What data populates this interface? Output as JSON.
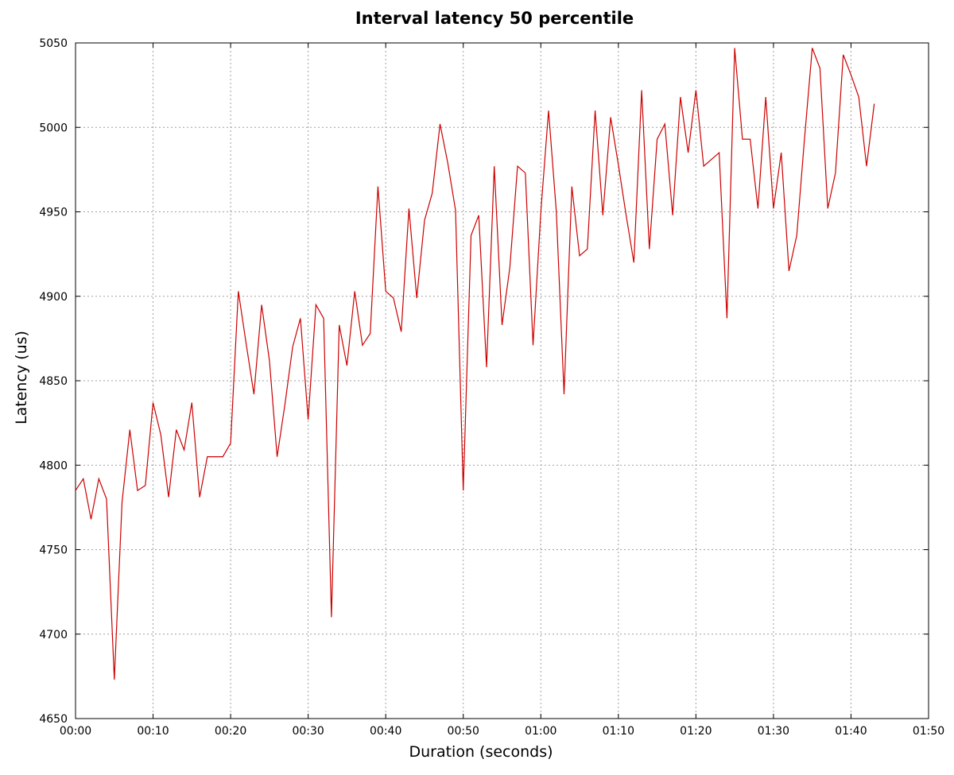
{
  "chart_data": {
    "type": "line",
    "title": "Interval latency 50 percentile",
    "xlabel": "Duration (seconds)",
    "ylabel": "Latency (us)",
    "xlim": [
      0,
      110
    ],
    "ylim": [
      4650,
      5050
    ],
    "x_ticks": [
      0,
      10,
      20,
      30,
      40,
      50,
      60,
      70,
      80,
      90,
      100,
      110
    ],
    "x_tick_labels": [
      "00:00",
      "00:10",
      "00:20",
      "00:30",
      "00:40",
      "00:50",
      "01:00",
      "01:10",
      "01:20",
      "01:30",
      "01:40",
      "01:50"
    ],
    "y_ticks": [
      4650,
      4700,
      4750,
      4800,
      4850,
      4900,
      4950,
      5000,
      5050
    ],
    "y_tick_labels": [
      "4650",
      "4700",
      "4750",
      "4800",
      "4850",
      "4900",
      "4950",
      "5000",
      "5050"
    ],
    "grid": true,
    "series": [
      {
        "color": "#cc0000",
        "x": [
          0,
          1,
          2,
          3,
          4,
          5,
          6,
          7,
          8,
          9,
          10,
          11,
          12,
          13,
          14,
          15,
          16,
          17,
          18,
          19,
          20,
          21,
          22,
          23,
          24,
          25,
          26,
          27,
          28,
          29,
          30,
          31,
          32,
          33,
          34,
          35,
          36,
          37,
          38,
          39,
          40,
          41,
          42,
          43,
          44,
          45,
          46,
          47,
          48,
          49,
          50,
          51,
          52,
          53,
          54,
          55,
          56,
          57,
          58,
          59,
          60,
          61,
          62,
          63,
          64,
          65,
          66,
          67,
          68,
          69,
          70,
          71,
          72,
          73,
          74,
          75,
          76,
          77,
          78,
          79,
          80,
          81,
          82,
          83,
          84,
          85,
          86,
          87,
          88,
          89,
          90,
          91,
          92,
          93,
          94,
          95,
          96,
          97,
          98,
          99,
          100,
          101,
          102,
          103
        ],
        "values": [
          4785,
          4792,
          4768,
          4792,
          4780,
          4673,
          4778,
          4821,
          4785,
          4788,
          4837,
          4818,
          4781,
          4821,
          4809,
          4837,
          4781,
          4805,
          4805,
          4805,
          4813,
          4903,
          4872,
          4842,
          4895,
          4862,
          4805,
          4836,
          4870,
          4887,
          4827,
          4895,
          4887,
          4710,
          4883,
          4859,
          4903,
          4871,
          4878,
          4965,
          4903,
          4899,
          4879,
          4952,
          4899,
          4945,
          4961,
          5002,
          4979,
          4951,
          4785,
          4936,
          4948,
          4858,
          4977,
          4883,
          4917,
          4977,
          4973,
          4871,
          4950,
          5010,
          4950,
          4842,
          4965,
          4924,
          4928,
          5010,
          4948,
          5006,
          4978,
          4948,
          4920,
          5022,
          4928,
          4993,
          5002,
          4948,
          5018,
          4985,
          5022,
          4977,
          4981,
          4985,
          4887,
          5047,
          4993,
          4993,
          4952,
          5018,
          4952,
          4985,
          4915,
          4936,
          4993,
          5047,
          5035,
          4952,
          4973,
          5043,
          5031,
          5018,
          4977,
          5014
        ]
      }
    ]
  }
}
